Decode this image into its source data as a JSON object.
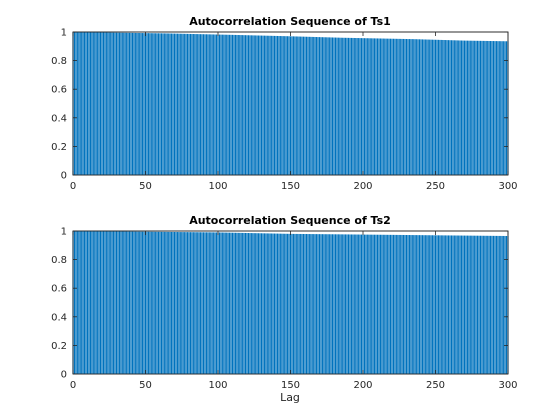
{
  "chart_data": [
    {
      "type": "bar",
      "title": "Autocorrelation Sequence of Ts1",
      "xlabel": "",
      "ylabel": "",
      "xlim": [
        0,
        300
      ],
      "ylim": [
        0,
        1
      ],
      "xticks": [
        "0",
        "50",
        "100",
        "150",
        "200",
        "250",
        "300"
      ],
      "yticks": [
        "0",
        "0.2",
        "0.4",
        "0.6",
        "0.8",
        "1"
      ],
      "lags": {
        "start": 0,
        "end": 300,
        "step": 1
      },
      "value_profile": [
        {
          "lag": 0,
          "value": 1.0
        },
        {
          "lag": 65,
          "value": 0.99
        },
        {
          "lag": 110,
          "value": 0.98
        },
        {
          "lag": 150,
          "value": 0.97
        },
        {
          "lag": 185,
          "value": 0.96
        },
        {
          "lag": 235,
          "value": 0.95
        },
        {
          "lag": 270,
          "value": 0.94
        },
        {
          "lag": 300,
          "value": 0.935
        }
      ],
      "bar_color": "#0072BD",
      "grid": false
    },
    {
      "type": "bar",
      "title": "Autocorrelation Sequence of Ts2",
      "xlabel": "Lag",
      "ylabel": "",
      "xlim": [
        0,
        300
      ],
      "ylim": [
        0,
        1
      ],
      "xticks": [
        "0",
        "50",
        "100",
        "150",
        "200",
        "250",
        "300"
      ],
      "yticks": [
        "0",
        "0.2",
        "0.4",
        "0.6",
        "0.8",
        "1"
      ],
      "lags": {
        "start": 0,
        "end": 300,
        "step": 1
      },
      "value_profile": [
        {
          "lag": 0,
          "value": 1.0
        },
        {
          "lag": 100,
          "value": 0.99
        },
        {
          "lag": 150,
          "value": 0.98
        },
        {
          "lag": 250,
          "value": 0.97
        },
        {
          "lag": 300,
          "value": 0.965
        }
      ],
      "bar_color": "#0072BD",
      "grid": false
    }
  ]
}
